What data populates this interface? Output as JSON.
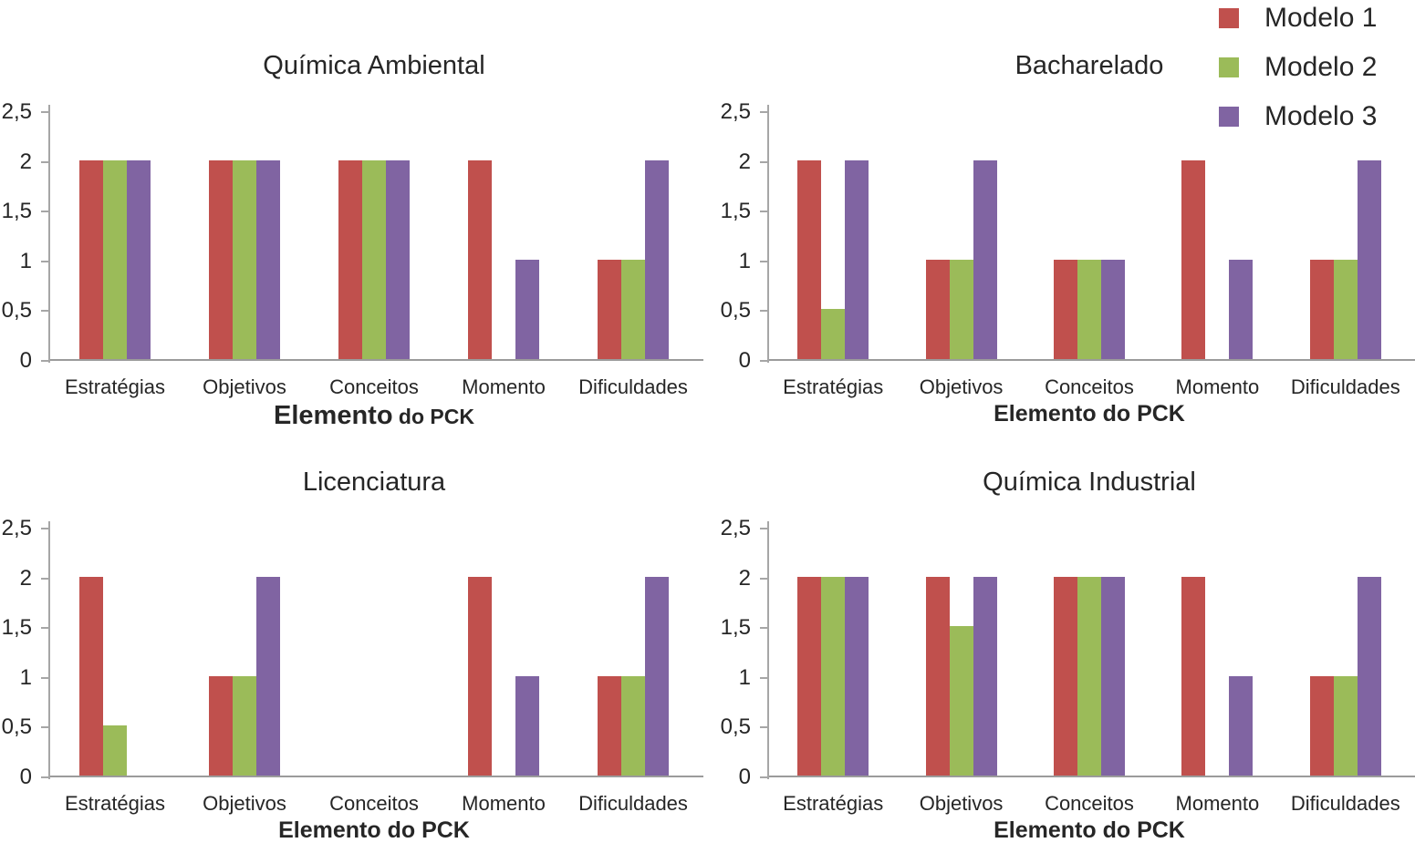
{
  "figure": {
    "background": "#ffffff",
    "text_color": "#262626",
    "axis_color": "#a6a6a6"
  },
  "legend": {
    "position": "top-right",
    "items": [
      {
        "label": "Modelo 1",
        "color": "#C0504D"
      },
      {
        "label": "Modelo 2",
        "color": "#9BBB59"
      },
      {
        "label": "Modelo 3",
        "color": "#8064A2"
      }
    ]
  },
  "chart_data": [
    {
      "type": "bar",
      "title": "Química Ambiental",
      "xlabel": "Elemento do PCK",
      "ylim": [
        0,
        2.5
      ],
      "yticks": [
        "0",
        "0,5",
        "1",
        "1,5",
        "2",
        "2,5"
      ],
      "grid": false,
      "legend_position": "figure-top-right",
      "categories": [
        "Estratégias",
        "Objetivos",
        "Conceitos",
        "Momento",
        "Dificuldades"
      ],
      "series": [
        {
          "name": "Modelo 1",
          "color": "#C0504D",
          "values": [
            2,
            2,
            2,
            2,
            1
          ]
        },
        {
          "name": "Modelo 2",
          "color": "#9BBB59",
          "values": [
            2,
            2,
            2,
            0,
            1
          ]
        },
        {
          "name": "Modelo 3",
          "color": "#8064A2",
          "values": [
            2,
            2,
            2,
            1,
            2
          ]
        }
      ]
    },
    {
      "type": "bar",
      "title": "Bacharelado",
      "xlabel": "Elemento do PCK",
      "ylim": [
        0,
        2.5
      ],
      "yticks": [
        "0",
        "0,5",
        "1",
        "1,5",
        "2",
        "2,5"
      ],
      "grid": false,
      "legend_position": "figure-top-right",
      "categories": [
        "Estratégias",
        "Objetivos",
        "Conceitos",
        "Momento",
        "Dificuldades"
      ],
      "series": [
        {
          "name": "Modelo 1",
          "color": "#C0504D",
          "values": [
            2,
            1,
            1,
            2,
            1
          ]
        },
        {
          "name": "Modelo 2",
          "color": "#9BBB59",
          "values": [
            0.5,
            1,
            1,
            0,
            1
          ]
        },
        {
          "name": "Modelo 3",
          "color": "#8064A2",
          "values": [
            2,
            2,
            1,
            1,
            2
          ]
        }
      ]
    },
    {
      "type": "bar",
      "title": "Licenciatura",
      "xlabel": "Elemento do PCK",
      "ylim": [
        0,
        2.5
      ],
      "yticks": [
        "0",
        "0,5",
        "1",
        "1,5",
        "2",
        "2,5"
      ],
      "grid": false,
      "legend_position": "figure-top-right",
      "categories": [
        "Estratégias",
        "Objetivos",
        "Conceitos",
        "Momento",
        "Dificuldades"
      ],
      "series": [
        {
          "name": "Modelo 1",
          "color": "#C0504D",
          "values": [
            2,
            1,
            0,
            2,
            1
          ]
        },
        {
          "name": "Modelo 2",
          "color": "#9BBB59",
          "values": [
            0.5,
            1,
            0,
            0,
            1
          ]
        },
        {
          "name": "Modelo 3",
          "color": "#8064A2",
          "values": [
            0,
            2,
            0,
            1,
            2
          ]
        }
      ]
    },
    {
      "type": "bar",
      "title": "Química Industrial",
      "xlabel": "Elemento do PCK",
      "ylim": [
        0,
        2.5
      ],
      "yticks": [
        "0",
        "0,5",
        "1",
        "1,5",
        "2",
        "2,5"
      ],
      "grid": false,
      "legend_position": "figure-top-right",
      "categories": [
        "Estratégias",
        "Objetivos",
        "Conceitos",
        "Momento",
        "Dificuldades"
      ],
      "series": [
        {
          "name": "Modelo 1",
          "color": "#C0504D",
          "values": [
            2,
            2,
            2,
            2,
            1
          ]
        },
        {
          "name": "Modelo 2",
          "color": "#9BBB59",
          "values": [
            2,
            1.5,
            2,
            0,
            1
          ]
        },
        {
          "name": "Modelo 3",
          "color": "#8064A2",
          "values": [
            2,
            2,
            2,
            1,
            2
          ]
        }
      ]
    }
  ]
}
